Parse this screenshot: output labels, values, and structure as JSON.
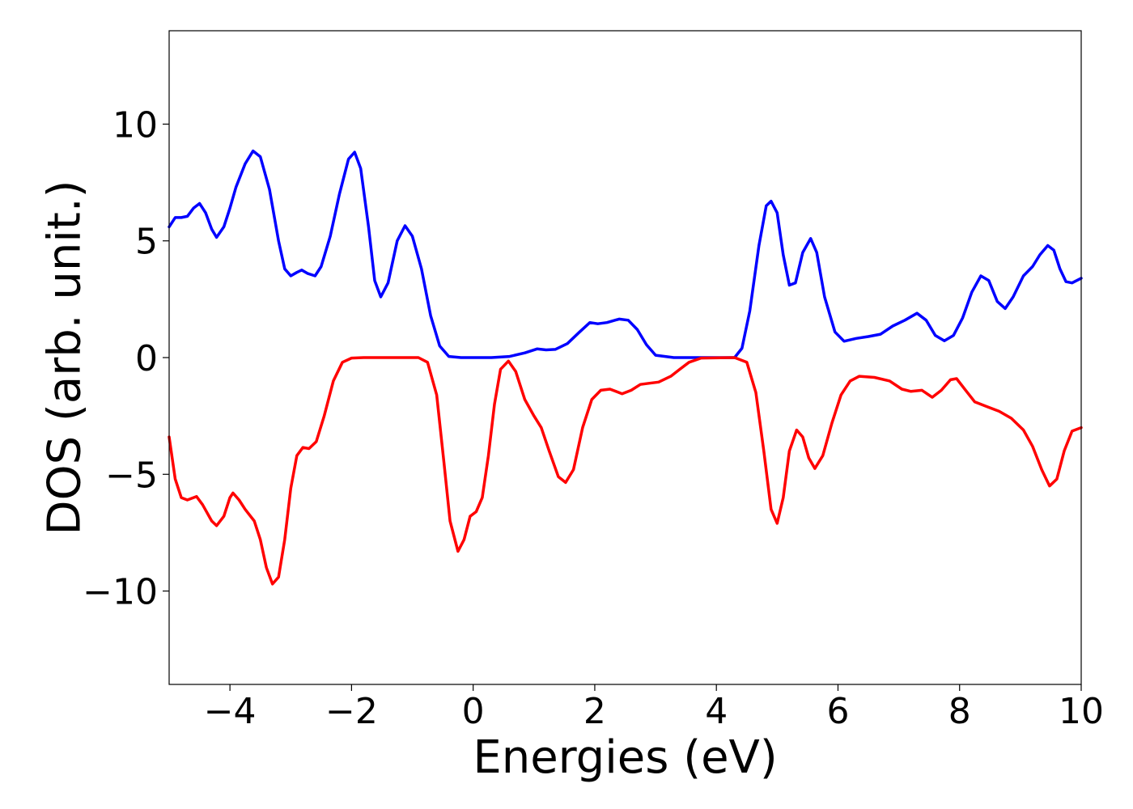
{
  "chart_data": {
    "type": "line",
    "xlabel": "Energies (eV)",
    "ylabel": "DOS (arb. unit.)",
    "xlim": [
      -5,
      10
    ],
    "ylim": [
      -14,
      14
    ],
    "x_ticks": [
      -4,
      -2,
      0,
      2,
      4,
      6,
      8,
      10
    ],
    "y_ticks": [
      -10,
      -5,
      0,
      5,
      10
    ],
    "x_tick_labels": [
      "−4",
      "−2",
      "0",
      "2",
      "4",
      "6",
      "8",
      "10"
    ],
    "y_tick_labels": [
      "−10",
      "−5",
      "0",
      "5",
      "10"
    ],
    "grid": false,
    "legend": "none",
    "series": [
      {
        "color": "#0000ff",
        "points": [
          [
            -5.0,
            5.6
          ],
          [
            -4.9,
            6.0
          ],
          [
            -4.8,
            6.0
          ],
          [
            -4.7,
            6.05
          ],
          [
            -4.6,
            6.4
          ],
          [
            -4.5,
            6.6
          ],
          [
            -4.4,
            6.2
          ],
          [
            -4.3,
            5.5
          ],
          [
            -4.22,
            5.15
          ],
          [
            -4.1,
            5.6
          ],
          [
            -4.0,
            6.4
          ],
          [
            -3.9,
            7.3
          ],
          [
            -3.75,
            8.3
          ],
          [
            -3.62,
            8.85
          ],
          [
            -3.5,
            8.6
          ],
          [
            -3.35,
            7.2
          ],
          [
            -3.2,
            5.0
          ],
          [
            -3.1,
            3.8
          ],
          [
            -3.0,
            3.5
          ],
          [
            -2.9,
            3.65
          ],
          [
            -2.82,
            3.75
          ],
          [
            -2.72,
            3.6
          ],
          [
            -2.6,
            3.5
          ],
          [
            -2.5,
            3.9
          ],
          [
            -2.35,
            5.2
          ],
          [
            -2.2,
            7.0
          ],
          [
            -2.05,
            8.5
          ],
          [
            -1.95,
            8.8
          ],
          [
            -1.85,
            8.1
          ],
          [
            -1.72,
            5.6
          ],
          [
            -1.62,
            3.3
          ],
          [
            -1.52,
            2.6
          ],
          [
            -1.4,
            3.2
          ],
          [
            -1.25,
            5.0
          ],
          [
            -1.12,
            5.65
          ],
          [
            -1.0,
            5.2
          ],
          [
            -0.85,
            3.8
          ],
          [
            -0.7,
            1.8
          ],
          [
            -0.55,
            0.5
          ],
          [
            -0.4,
            0.05
          ],
          [
            -0.2,
            0.0
          ],
          [
            0.3,
            0.0
          ],
          [
            0.6,
            0.05
          ],
          [
            0.85,
            0.2
          ],
          [
            1.05,
            0.37
          ],
          [
            1.2,
            0.33
          ],
          [
            1.35,
            0.35
          ],
          [
            1.55,
            0.6
          ],
          [
            1.75,
            1.1
          ],
          [
            1.92,
            1.5
          ],
          [
            2.05,
            1.45
          ],
          [
            2.2,
            1.5
          ],
          [
            2.4,
            1.65
          ],
          [
            2.55,
            1.6
          ],
          [
            2.7,
            1.2
          ],
          [
            2.85,
            0.55
          ],
          [
            3.0,
            0.1
          ],
          [
            3.3,
            0.0
          ],
          [
            4.3,
            0.0
          ],
          [
            4.42,
            0.4
          ],
          [
            4.55,
            2.0
          ],
          [
            4.7,
            4.8
          ],
          [
            4.82,
            6.5
          ],
          [
            4.9,
            6.7
          ],
          [
            5.0,
            6.2
          ],
          [
            5.1,
            4.4
          ],
          [
            5.2,
            3.1
          ],
          [
            5.3,
            3.2
          ],
          [
            5.42,
            4.5
          ],
          [
            5.55,
            5.1
          ],
          [
            5.65,
            4.5
          ],
          [
            5.78,
            2.6
          ],
          [
            5.95,
            1.1
          ],
          [
            6.1,
            0.7
          ],
          [
            6.3,
            0.82
          ],
          [
            6.5,
            0.9
          ],
          [
            6.7,
            1.0
          ],
          [
            6.9,
            1.35
          ],
          [
            7.1,
            1.6
          ],
          [
            7.3,
            1.9
          ],
          [
            7.45,
            1.6
          ],
          [
            7.6,
            0.95
          ],
          [
            7.75,
            0.72
          ],
          [
            7.9,
            0.95
          ],
          [
            8.05,
            1.7
          ],
          [
            8.2,
            2.8
          ],
          [
            8.35,
            3.5
          ],
          [
            8.48,
            3.3
          ],
          [
            8.62,
            2.4
          ],
          [
            8.75,
            2.1
          ],
          [
            8.88,
            2.6
          ],
          [
            9.05,
            3.5
          ],
          [
            9.2,
            3.9
          ],
          [
            9.32,
            4.4
          ],
          [
            9.45,
            4.8
          ],
          [
            9.55,
            4.6
          ],
          [
            9.65,
            3.8
          ],
          [
            9.75,
            3.25
          ],
          [
            9.85,
            3.2
          ],
          [
            10.0,
            3.4
          ]
        ]
      },
      {
        "color": "#ff0000",
        "points": [
          [
            -5.0,
            -3.4
          ],
          [
            -4.9,
            -5.2
          ],
          [
            -4.8,
            -6.0
          ],
          [
            -4.7,
            -6.1
          ],
          [
            -4.55,
            -5.95
          ],
          [
            -4.45,
            -6.3
          ],
          [
            -4.3,
            -7.0
          ],
          [
            -4.22,
            -7.2
          ],
          [
            -4.1,
            -6.8
          ],
          [
            -4.0,
            -6.0
          ],
          [
            -3.95,
            -5.8
          ],
          [
            -3.85,
            -6.1
          ],
          [
            -3.75,
            -6.5
          ],
          [
            -3.6,
            -7.0
          ],
          [
            -3.5,
            -7.8
          ],
          [
            -3.4,
            -9.0
          ],
          [
            -3.3,
            -9.7
          ],
          [
            -3.2,
            -9.4
          ],
          [
            -3.1,
            -7.8
          ],
          [
            -3.0,
            -5.6
          ],
          [
            -2.9,
            -4.2
          ],
          [
            -2.8,
            -3.85
          ],
          [
            -2.7,
            -3.9
          ],
          [
            -2.58,
            -3.6
          ],
          [
            -2.45,
            -2.5
          ],
          [
            -2.3,
            -1.0
          ],
          [
            -2.15,
            -0.2
          ],
          [
            -2.0,
            -0.02
          ],
          [
            -1.8,
            0.0
          ],
          [
            -0.9,
            0.0
          ],
          [
            -0.75,
            -0.2
          ],
          [
            -0.6,
            -1.6
          ],
          [
            -0.48,
            -4.5
          ],
          [
            -0.38,
            -7.0
          ],
          [
            -0.25,
            -8.3
          ],
          [
            -0.15,
            -7.8
          ],
          [
            -0.05,
            -6.8
          ],
          [
            0.05,
            -6.6
          ],
          [
            0.15,
            -6.0
          ],
          [
            0.25,
            -4.2
          ],
          [
            0.35,
            -2.0
          ],
          [
            0.45,
            -0.5
          ],
          [
            0.58,
            -0.15
          ],
          [
            0.7,
            -0.6
          ],
          [
            0.85,
            -1.8
          ],
          [
            1.0,
            -2.5
          ],
          [
            1.12,
            -3.0
          ],
          [
            1.25,
            -4.0
          ],
          [
            1.4,
            -5.1
          ],
          [
            1.52,
            -5.35
          ],
          [
            1.65,
            -4.8
          ],
          [
            1.8,
            -3.0
          ],
          [
            1.95,
            -1.8
          ],
          [
            2.1,
            -1.4
          ],
          [
            2.25,
            -1.35
          ],
          [
            2.45,
            -1.55
          ],
          [
            2.6,
            -1.4
          ],
          [
            2.75,
            -1.15
          ],
          [
            2.9,
            -1.1
          ],
          [
            3.05,
            -1.05
          ],
          [
            3.25,
            -0.8
          ],
          [
            3.4,
            -0.5
          ],
          [
            3.55,
            -0.2
          ],
          [
            3.75,
            -0.02
          ],
          [
            4.3,
            0.0
          ],
          [
            4.5,
            -0.2
          ],
          [
            4.65,
            -1.5
          ],
          [
            4.78,
            -4.0
          ],
          [
            4.9,
            -6.5
          ],
          [
            5.0,
            -7.1
          ],
          [
            5.1,
            -6.0
          ],
          [
            5.2,
            -4.0
          ],
          [
            5.32,
            -3.1
          ],
          [
            5.42,
            -3.4
          ],
          [
            5.52,
            -4.3
          ],
          [
            5.62,
            -4.75
          ],
          [
            5.75,
            -4.2
          ],
          [
            5.9,
            -2.8
          ],
          [
            6.05,
            -1.6
          ],
          [
            6.2,
            -1.0
          ],
          [
            6.35,
            -0.8
          ],
          [
            6.6,
            -0.85
          ],
          [
            6.85,
            -1.0
          ],
          [
            7.05,
            -1.35
          ],
          [
            7.2,
            -1.45
          ],
          [
            7.38,
            -1.4
          ],
          [
            7.55,
            -1.7
          ],
          [
            7.7,
            -1.4
          ],
          [
            7.85,
            -0.95
          ],
          [
            7.95,
            -0.9
          ],
          [
            8.1,
            -1.4
          ],
          [
            8.25,
            -1.9
          ],
          [
            8.45,
            -2.1
          ],
          [
            8.65,
            -2.3
          ],
          [
            8.85,
            -2.6
          ],
          [
            9.05,
            -3.1
          ],
          [
            9.2,
            -3.8
          ],
          [
            9.35,
            -4.8
          ],
          [
            9.48,
            -5.5
          ],
          [
            9.6,
            -5.2
          ],
          [
            9.72,
            -4.0
          ],
          [
            9.85,
            -3.15
          ],
          [
            10.0,
            -3.0
          ]
        ]
      }
    ]
  }
}
